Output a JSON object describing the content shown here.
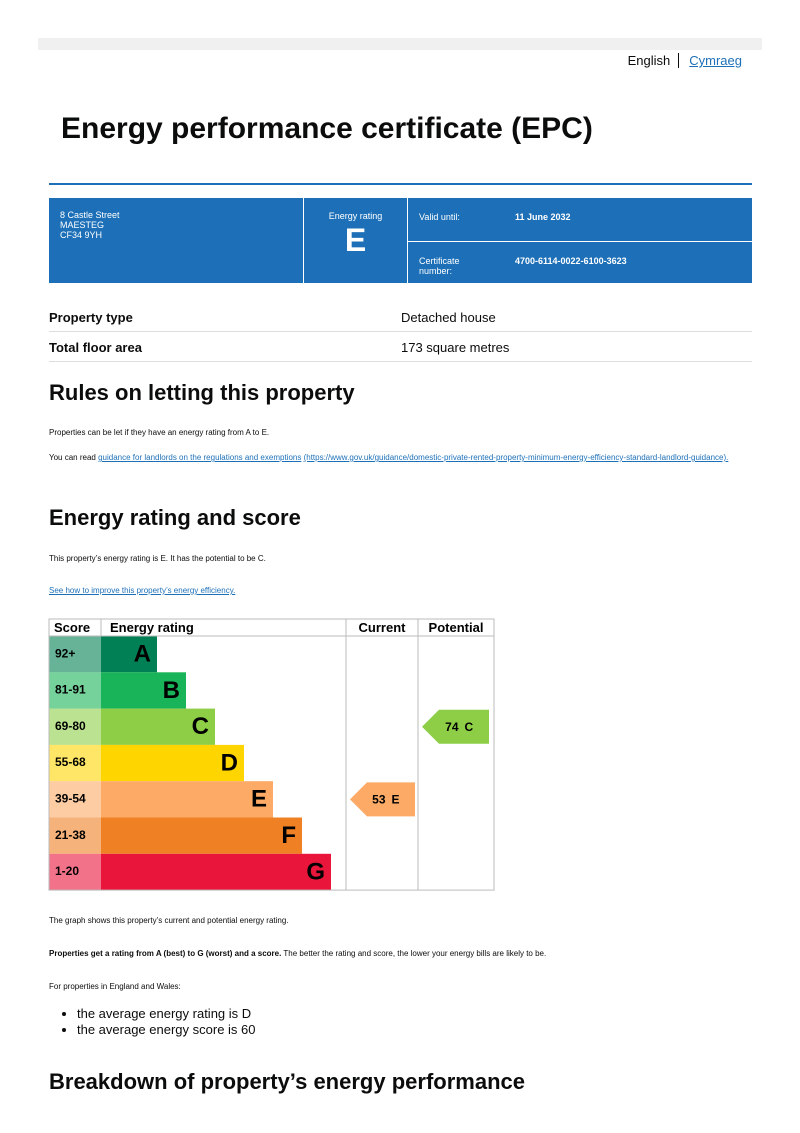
{
  "header": {
    "languages": [
      "English",
      "Cymraeg"
    ],
    "title": "Energy performance certificate (EPC)"
  },
  "summary": {
    "address": [
      "8 Castle Street",
      "MAESTEG",
      "CF34 9YH"
    ],
    "rating_label": "Energy rating",
    "rating": "E",
    "valid_until_label": "Valid until:",
    "valid_until": "11 June 2032",
    "certificate_label": "Certificate number:",
    "certificate_number": "4700-6114-0022-6100-3623"
  },
  "property": {
    "rows": [
      [
        "Property type",
        "Detached house"
      ],
      [
        "Total floor area",
        "173 square metres"
      ]
    ]
  },
  "letting": {
    "heading": "Rules on letting this property",
    "text": "Properties can be let if they have an energy rating from A to E.",
    "link_prefix": "You can read",
    "link": "guidance for landlords on the regulations and exemptions",
    "url": "(https://www.gov.uk/guidance/domestic-private-rented-property-minimum-energy-efficiency-standard-landlord-guidance)."
  },
  "rating": {
    "heading": "Energy rating and score",
    "text": "This property’s energy rating is E. It has the potential to be C.",
    "link": "See how to improve this property’s energy efficiency.",
    "columns": [
      "Score",
      "Energy rating",
      "Current",
      "Potential"
    ],
    "bands": [
      {
        "range": "92+",
        "letter": "A",
        "color": "#008054"
      },
      {
        "range": "81-91",
        "letter": "B",
        "color": "#19b459"
      },
      {
        "range": "69-80",
        "letter": "C",
        "color": "#8dce46"
      },
      {
        "range": "55-68",
        "letter": "D",
        "color": "#ffd500"
      },
      {
        "range": "39-54",
        "letter": "E",
        "color": "#fcaa65"
      },
      {
        "range": "21-38",
        "letter": "F",
        "color": "#ef8023"
      },
      {
        "range": "1-20",
        "letter": "G",
        "color": "#e9153b"
      }
    ],
    "current": {
      "score": 53,
      "letter": "E"
    },
    "potential": {
      "score": 74,
      "letter": "C"
    },
    "caption": "The graph shows this property’s current and potential energy rating.",
    "scale_bold": "Properties get a rating from A (best) to G (worst) and a score.",
    "scale_text": "The better the rating and score, the lower your energy bills are likely to be.",
    "average_intro": "For properties in England and Wales:",
    "averages": [
      "the average energy rating is D",
      "the average energy score is 60"
    ]
  },
  "breakdown": {
    "heading": "Breakdown of property’s energy performance"
  }
}
